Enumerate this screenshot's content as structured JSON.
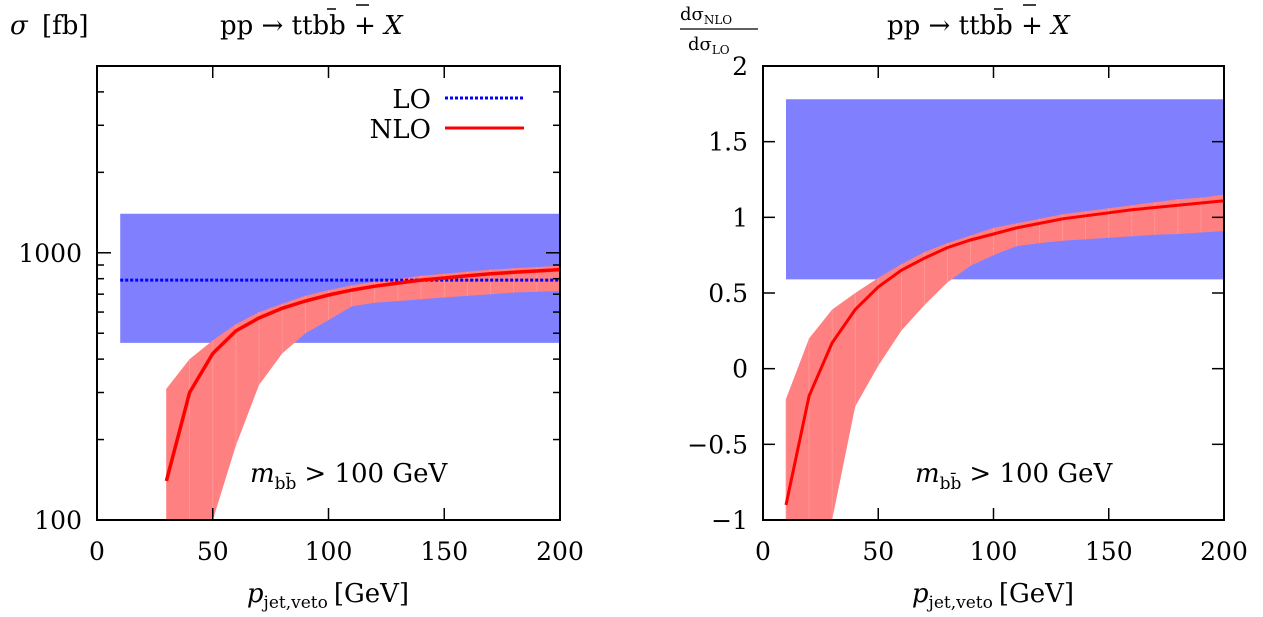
{
  "chart_data": [
    {
      "type": "line",
      "panel": "left",
      "title": "pp → tt̄bb̄ + X",
      "ylabel": "σ [fb]",
      "xlabel": "p_jet,veto [GeV]",
      "xlabel_parts": {
        "sym": "p",
        "sub": "jet,veto",
        "unit": "[GeV]"
      },
      "ylabel_parts": {
        "sym": "σ",
        "unit": "[fb]"
      },
      "title_parts": {
        "pre": "pp → t",
        "tbar": "t",
        "b1": "b",
        "bbar": "b",
        "post": " + ",
        "x": "X"
      },
      "annotation": {
        "sym": "m",
        "sub": "bb̄",
        "rest": "> 100 GeV"
      },
      "x_ticks": [
        0,
        50,
        100,
        150,
        200
      ],
      "x_tick_labels": [
        "0",
        "50",
        "100",
        "150",
        "200"
      ],
      "y_tick_labels": [
        "100",
        "1000"
      ],
      "y_tick_values": [
        100,
        1000
      ],
      "xlim": [
        0,
        200
      ],
      "ylim": [
        100,
        5000
      ],
      "y_scale": "log",
      "legend": {
        "position": "top-right",
        "entries": [
          "LO",
          "NLO"
        ]
      },
      "series": [
        {
          "name": "LO",
          "style": "dotted",
          "color": "#0000ff",
          "x": [
            10,
            200
          ],
          "y": [
            790,
            790
          ],
          "band_color": "#8080ff",
          "band": {
            "x": [
              10,
              200
            ],
            "low": [
              460,
              460
            ],
            "high": [
              1400,
              1400
            ]
          }
        },
        {
          "name": "NLO",
          "style": "solid",
          "color": "#ff0000",
          "x": [
            30,
            40,
            50,
            60,
            70,
            80,
            90,
            100,
            110,
            120,
            130,
            140,
            150,
            160,
            170,
            180,
            190,
            200
          ],
          "y": [
            140,
            300,
            420,
            510,
            570,
            620,
            660,
            695,
            725,
            750,
            770,
            790,
            805,
            820,
            835,
            845,
            855,
            865
          ],
          "band_color": "#ff8080",
          "band": {
            "x": [
              30,
              40,
              50,
              60,
              70,
              80,
              90,
              100,
              110,
              120,
              130,
              140,
              150,
              160,
              170,
              180,
              190,
              200
            ],
            "low": [
              100,
              100,
              100,
              190,
              320,
              420,
              500,
              560,
              630,
              650,
              660,
              670,
              680,
              690,
              700,
              710,
              715,
              720
            ],
            "high": [
              310,
              400,
              470,
              540,
              600,
              645,
              690,
              725,
              755,
              780,
              800,
              820,
              835,
              850,
              865,
              875,
              885,
              895
            ]
          }
        }
      ]
    },
    {
      "type": "line",
      "panel": "right",
      "title": "pp → tt̄bb̄ + X",
      "ylabel": "dσ_NLO / dσ_LO",
      "xlabel": "p_jet,veto [GeV]",
      "xlabel_parts": {
        "sym": "p",
        "sub": "jet,veto",
        "unit": "[GeV]"
      },
      "ylabel_parts": {
        "num": "dσ",
        "num_sub": "NLO",
        "den": "dσ",
        "den_sub": "LO"
      },
      "title_parts": {
        "pre": "pp → t",
        "tbar": "t",
        "b1": "b",
        "bbar": "b",
        "post": " + ",
        "x": "X"
      },
      "annotation": {
        "sym": "m",
        "sub": "bb̄",
        "rest": "> 100 GeV"
      },
      "x_ticks": [
        0,
        50,
        100,
        150,
        200
      ],
      "x_tick_labels": [
        "0",
        "50",
        "100",
        "150",
        "200"
      ],
      "y_ticks": [
        -1,
        -0.5,
        0,
        0.5,
        1,
        1.5,
        2
      ],
      "y_tick_labels": [
        "−1",
        "−0.5",
        "0",
        "0.5",
        "1",
        "1.5",
        "2"
      ],
      "xlim": [
        0,
        200
      ],
      "ylim": [
        -1,
        2
      ],
      "series": [
        {
          "name": "LO band",
          "color": "#8080ff",
          "band": {
            "x": [
              10,
              200
            ],
            "low": [
              0.59,
              0.59
            ],
            "high": [
              1.78,
              1.78
            ]
          }
        },
        {
          "name": "NLO/LO",
          "color": "#ff0000",
          "x": [
            10,
            20,
            30,
            40,
            50,
            60,
            70,
            80,
            90,
            100,
            110,
            120,
            130,
            140,
            150,
            160,
            170,
            180,
            190,
            200
          ],
          "y": [
            -0.9,
            -0.18,
            0.17,
            0.39,
            0.54,
            0.65,
            0.73,
            0.8,
            0.85,
            0.89,
            0.93,
            0.96,
            0.99,
            1.01,
            1.03,
            1.05,
            1.065,
            1.08,
            1.095,
            1.11
          ],
          "band_color": "#ff8080",
          "band": {
            "x": [
              10,
              20,
              30,
              40,
              50,
              60,
              70,
              80,
              90,
              100,
              110,
              120,
              130,
              140,
              150,
              160,
              170,
              180,
              190,
              200
            ],
            "low": [
              -1,
              -1,
              -1,
              -0.25,
              0.02,
              0.25,
              0.42,
              0.57,
              0.68,
              0.75,
              0.81,
              0.83,
              0.845,
              0.855,
              0.865,
              0.875,
              0.885,
              0.89,
              0.9,
              0.91
            ],
            "high": [
              -0.2,
              0.2,
              0.39,
              0.5,
              0.6,
              0.69,
              0.77,
              0.83,
              0.88,
              0.93,
              0.96,
              0.99,
              1.02,
              1.04,
              1.06,
              1.08,
              1.1,
              1.12,
              1.13,
              1.15
            ]
          }
        }
      ]
    }
  ]
}
